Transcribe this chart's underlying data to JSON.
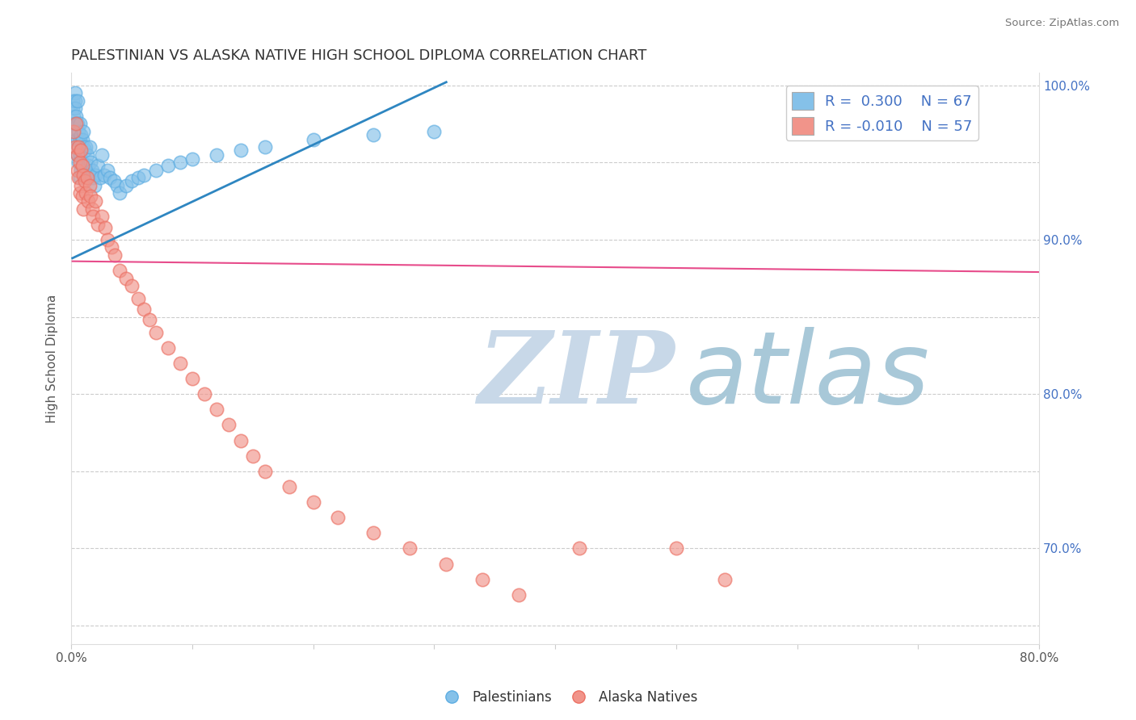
{
  "title": "PALESTINIAN VS ALASKA NATIVE HIGH SCHOOL DIPLOMA CORRELATION CHART",
  "source_text": "Source: ZipAtlas.com",
  "ylabel": "High School Diploma",
  "xlim": [
    0.0,
    0.8
  ],
  "ylim": [
    0.638,
    1.008
  ],
  "blue_R": 0.3,
  "blue_N": 67,
  "pink_R": -0.01,
  "pink_N": 57,
  "blue_color": "#85C1E9",
  "pink_color": "#F1948A",
  "blue_edge_color": "#5DADE2",
  "pink_edge_color": "#EC7063",
  "blue_line_color": "#2E86C1",
  "pink_line_color": "#E74C8B",
  "watermark_zip": "ZIP",
  "watermark_atlas": "atlas",
  "watermark_color_zip": "#C8D8E8",
  "watermark_color_atlas": "#A8C8D8",
  "background_color": "#FFFFFF",
  "title_color": "#333333",
  "grid_color": "#CCCCCC",
  "ytick_positions": [
    0.65,
    0.7,
    0.75,
    0.8,
    0.85,
    0.9,
    0.95,
    1.0
  ],
  "ytick_labels_right": [
    "",
    "70.0%",
    "",
    "80.0%",
    "",
    "90.0%",
    "",
    "100.0%"
  ],
  "xtick_positions": [
    0.0,
    0.1,
    0.2,
    0.3,
    0.4,
    0.5,
    0.6,
    0.7,
    0.8
  ],
  "xtick_labels": [
    "0.0%",
    "",
    "",
    "",
    "",
    "",
    "",
    "",
    "80.0%"
  ],
  "blue_scatter_x": [
    0.001,
    0.001,
    0.002,
    0.002,
    0.002,
    0.003,
    0.003,
    0.003,
    0.003,
    0.004,
    0.004,
    0.004,
    0.005,
    0.005,
    0.005,
    0.005,
    0.006,
    0.006,
    0.006,
    0.007,
    0.007,
    0.007,
    0.007,
    0.008,
    0.008,
    0.008,
    0.009,
    0.009,
    0.01,
    0.01,
    0.01,
    0.011,
    0.011,
    0.012,
    0.012,
    0.013,
    0.014,
    0.015,
    0.015,
    0.016,
    0.017,
    0.018,
    0.019,
    0.02,
    0.022,
    0.024,
    0.025,
    0.027,
    0.03,
    0.032,
    0.035,
    0.038,
    0.04,
    0.045,
    0.05,
    0.055,
    0.06,
    0.07,
    0.08,
    0.09,
    0.1,
    0.12,
    0.14,
    0.16,
    0.2,
    0.25,
    0.3
  ],
  "blue_scatter_y": [
    0.99,
    0.985,
    0.98,
    0.975,
    0.97,
    0.995,
    0.99,
    0.985,
    0.975,
    0.98,
    0.975,
    0.965,
    0.99,
    0.975,
    0.965,
    0.955,
    0.97,
    0.96,
    0.95,
    0.975,
    0.965,
    0.955,
    0.94,
    0.968,
    0.958,
    0.945,
    0.965,
    0.95,
    0.97,
    0.96,
    0.945,
    0.958,
    0.942,
    0.96,
    0.945,
    0.955,
    0.948,
    0.96,
    0.942,
    0.95,
    0.945,
    0.94,
    0.935,
    0.942,
    0.948,
    0.94,
    0.955,
    0.942,
    0.945,
    0.94,
    0.938,
    0.935,
    0.93,
    0.935,
    0.938,
    0.94,
    0.942,
    0.945,
    0.948,
    0.95,
    0.952,
    0.955,
    0.958,
    0.96,
    0.965,
    0.968,
    0.97
  ],
  "pink_scatter_x": [
    0.002,
    0.003,
    0.004,
    0.005,
    0.005,
    0.006,
    0.006,
    0.007,
    0.007,
    0.008,
    0.008,
    0.009,
    0.009,
    0.01,
    0.01,
    0.011,
    0.012,
    0.013,
    0.014,
    0.015,
    0.016,
    0.017,
    0.018,
    0.02,
    0.022,
    0.025,
    0.028,
    0.03,
    0.033,
    0.036,
    0.04,
    0.045,
    0.05,
    0.055,
    0.06,
    0.065,
    0.07,
    0.08,
    0.09,
    0.1,
    0.11,
    0.12,
    0.13,
    0.14,
    0.15,
    0.16,
    0.18,
    0.2,
    0.22,
    0.25,
    0.28,
    0.31,
    0.34,
    0.37,
    0.42,
    0.5,
    0.54
  ],
  "pink_scatter_y": [
    0.97,
    0.96,
    0.975,
    0.955,
    0.945,
    0.96,
    0.94,
    0.95,
    0.93,
    0.958,
    0.935,
    0.948,
    0.928,
    0.942,
    0.92,
    0.938,
    0.93,
    0.94,
    0.925,
    0.935,
    0.928,
    0.92,
    0.915,
    0.925,
    0.91,
    0.915,
    0.908,
    0.9,
    0.895,
    0.89,
    0.88,
    0.875,
    0.87,
    0.862,
    0.855,
    0.848,
    0.84,
    0.83,
    0.82,
    0.81,
    0.8,
    0.79,
    0.78,
    0.77,
    0.76,
    0.75,
    0.74,
    0.73,
    0.72,
    0.71,
    0.7,
    0.69,
    0.68,
    0.67,
    0.7,
    0.7,
    0.68
  ],
  "blue_trendline_x": [
    0.001,
    0.31
  ],
  "blue_trendline_y": [
    0.888,
    1.002
  ],
  "pink_trendline_x": [
    0.001,
    0.8
  ],
  "pink_trendline_y": [
    0.886,
    0.879
  ]
}
